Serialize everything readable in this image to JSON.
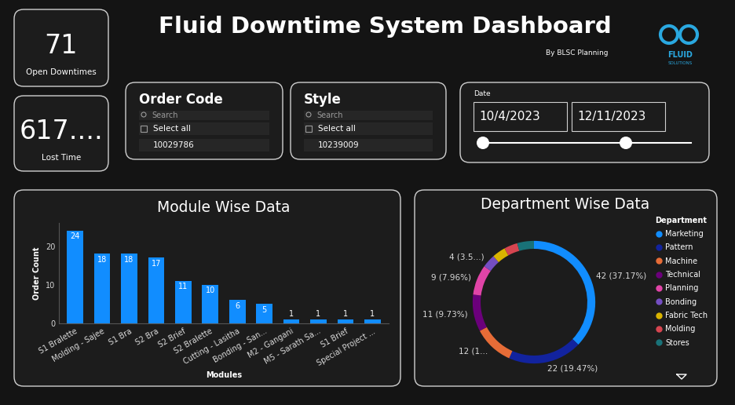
{
  "header": {
    "title": "Fluid Downtime System Dashboard",
    "subtitle": "By BLSC Planning",
    "logo": [
      "FLUID",
      "SOLUTIONS"
    ]
  },
  "cards": [
    {
      "value": 71,
      "label": "Open Downtimes"
    },
    {
      "value": "617....",
      "label": "Lost Time"
    }
  ],
  "slicers": [
    {
      "title": "Order Code",
      "search": "Search",
      "items": [
        "Select all",
        "10029786"
      ]
    },
    {
      "title": "Style",
      "search": "Search",
      "items": [
        "Select all",
        "10239009"
      ]
    }
  ],
  "date_slicer": {
    "title": "Date",
    "start": "10/4/2023",
    "end": "12/11/2023"
  },
  "chart_data": [
    {
      "type": "bar",
      "title": "Module Wise Data",
      "x_label": "Modules",
      "y_label": "Order Count",
      "categories": [
        "S1 Bralette",
        "Molding - Sajee",
        "S1 Bra",
        "S2 Bra",
        "S2 Brief",
        "S2 Bralette",
        "Cutting - Lasitha",
        "Bonding - San...",
        "M2 - Gangani",
        "M5 - Sarath Sa...",
        "S1 Brief",
        "Special Project ..."
      ],
      "values": [
        24,
        18,
        18,
        17,
        11,
        10,
        6,
        5,
        1,
        1,
        1,
        1
      ],
      "color": "#118dff",
      "ylim": [
        0,
        26
      ],
      "yticks": [
        0,
        10,
        20
      ],
      "data_labels": true
    },
    {
      "type": "donut",
      "title": "Department Wise Data",
      "legend_title": "Department",
      "legend": "upper right",
      "categories": [
        "Marketing",
        "Pattern",
        "Machine",
        "Technical",
        "Planning",
        "Bonding",
        "Fabric Tech",
        "Molding",
        "Stores"
      ],
      "values": [
        42,
        22,
        12,
        11,
        9,
        4,
        4,
        4,
        5
      ],
      "value_labels": [
        "42 (37.17%)",
        "22 (19.47%)",
        "12 (1...",
        "11 (9.73%)",
        "9 (7.96%)",
        "4 (3.5...)",
        null,
        null,
        null
      ],
      "colors": [
        "#118dff",
        "#12239e",
        "#e66c37",
        "#6b007b",
        "#e044a7",
        "#744ec2",
        "#d9b300",
        "#d64550",
        "#197278"
      ],
      "data_labels": true
    }
  ]
}
